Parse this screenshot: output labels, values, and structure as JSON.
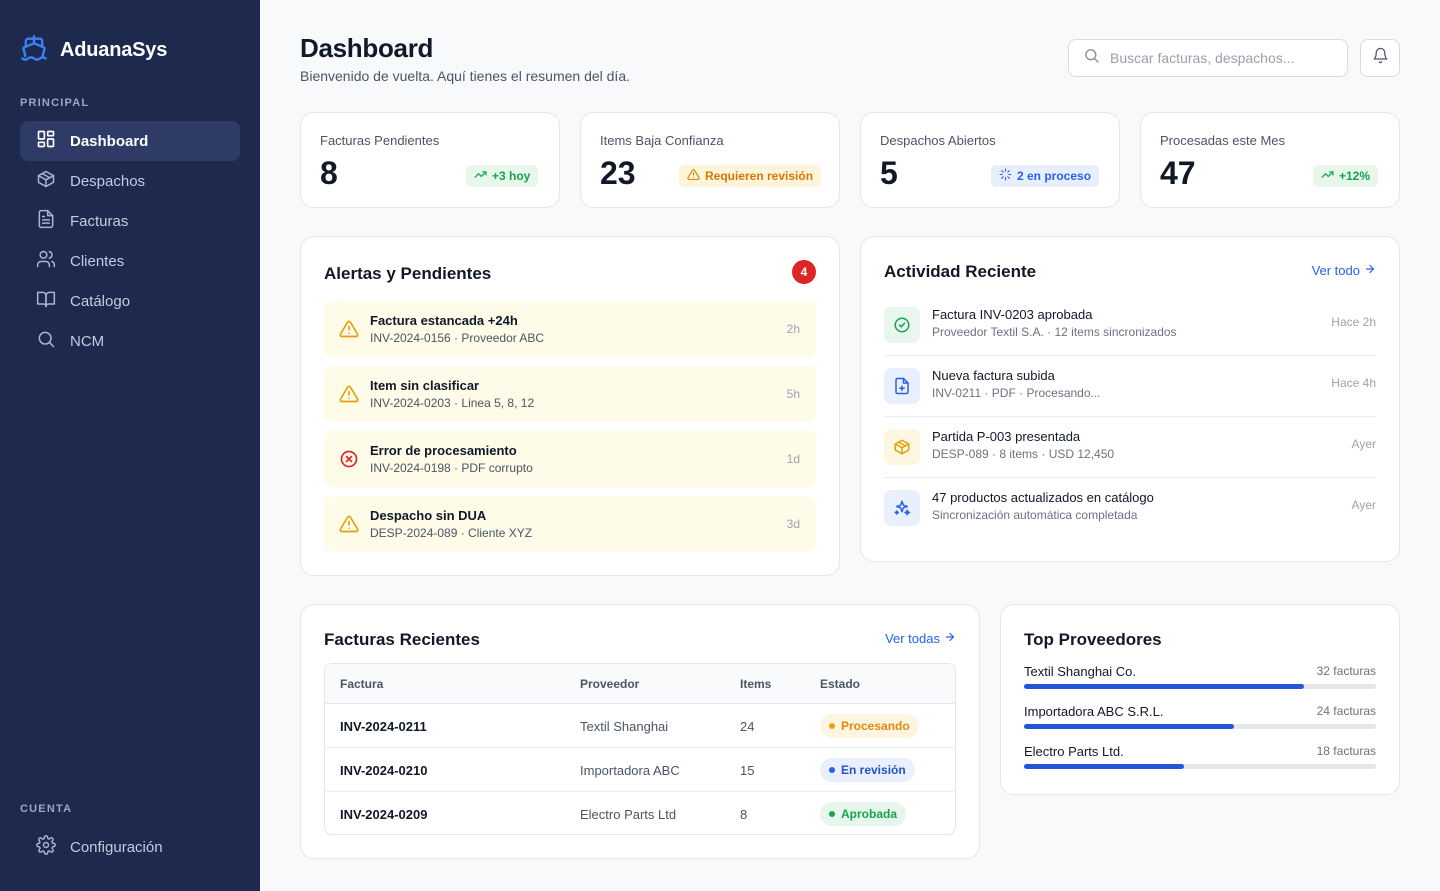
{
  "sidebar": {
    "brand": "AduanaSys",
    "section_principal": "PRINCIPAL",
    "section_cuenta": "CUENTA",
    "items": [
      {
        "label": "Dashboard",
        "icon": "dashboard-icon",
        "active": true
      },
      {
        "label": "Despachos",
        "icon": "package-icon"
      },
      {
        "label": "Facturas",
        "icon": "document-icon"
      },
      {
        "label": "Clientes",
        "icon": "users-icon"
      },
      {
        "label": "Catálogo",
        "icon": "book-icon"
      },
      {
        "label": "NCM",
        "icon": "search-icon"
      }
    ],
    "settings": {
      "label": "Configuración",
      "icon": "gear-icon"
    }
  },
  "header": {
    "title": "Dashboard",
    "subtitle": "Bienvenido de vuelta. Aquí tienes el resumen del día.",
    "search_placeholder": "Buscar facturas, despachos..."
  },
  "stats": [
    {
      "label": "Facturas Pendientes",
      "value": "8",
      "pill": "+3 hoy",
      "tone": "green",
      "icon": "trend-up-icon"
    },
    {
      "label": "Items Baja Confianza",
      "value": "23",
      "pill": "Requieren revisión",
      "tone": "amber",
      "icon": "warning-icon"
    },
    {
      "label": "Despachos Abiertos",
      "value": "5",
      "pill": "2 en proceso",
      "tone": "blue",
      "icon": "loader-icon"
    },
    {
      "label": "Procesadas este Mes",
      "value": "47",
      "pill": "+12%",
      "tone": "green",
      "icon": "trend-up-icon"
    }
  ],
  "alerts": {
    "title": "Alertas y Pendientes",
    "count": "4",
    "items": [
      {
        "title": "Factura estancada +24h",
        "detail": "INV-2024-0156 · Proveedor ABC",
        "time": "2h",
        "icon": "warning-icon"
      },
      {
        "title": "Item sin clasificar",
        "detail": "INV-2024-0203 · Linea 5, 8, 12",
        "time": "5h",
        "icon": "warning-icon"
      },
      {
        "title": "Error de procesamiento",
        "detail": "INV-2024-0198 · PDF corrupto",
        "time": "1d",
        "icon": "error-icon"
      },
      {
        "title": "Despacho sin DUA",
        "detail": "DESP-2024-089 · Cliente XYZ",
        "time": "3d",
        "icon": "warning-icon"
      }
    ]
  },
  "activity": {
    "title": "Actividad Reciente",
    "link": "Ver todo",
    "items": [
      {
        "title": "Factura INV-0203 aprobada",
        "detail": "Proveedor Textil S.A. · 12 items sincronizados",
        "time": "Hace 2h",
        "icon": "check-circle-icon"
      },
      {
        "title": "Nueva factura subida",
        "detail": "INV-0211 · PDF · Procesando...",
        "time": "Hace 4h",
        "icon": "file-plus-icon"
      },
      {
        "title": "Partida P-003 presentada",
        "detail": "DESP-089 · 8 items · USD 12,450",
        "time": "Ayer",
        "icon": "package-icon"
      },
      {
        "title": "47 productos actualizados en catálogo",
        "detail": "Sincronización automática completada",
        "time": "Ayer",
        "icon": "sparkles-icon"
      }
    ]
  },
  "invoices": {
    "title": "Facturas Recientes",
    "link": "Ver todas",
    "columns": [
      "Factura",
      "Proveedor",
      "Items",
      "Estado"
    ],
    "rows": [
      {
        "factura": "INV-2024-0211",
        "proveedor": "Textil Shanghai",
        "items": "24",
        "estado": "Procesando",
        "tone": "amber"
      },
      {
        "factura": "INV-2024-0210",
        "proveedor": "Importadora ABC",
        "items": "15",
        "estado": "En revisión",
        "tone": "blue"
      },
      {
        "factura": "INV-2024-0209",
        "proveedor": "Electro Parts Ltd",
        "items": "8",
        "estado": "Aprobada",
        "tone": "green"
      }
    ]
  },
  "providers": {
    "title": "Top Proveedores",
    "items": [
      {
        "name": "Textil Shanghai Co.",
        "count": "32 facturas",
        "fraction": 0.795
      },
      {
        "name": "Importadora ABC S.R.L.",
        "count": "24 facturas",
        "fraction": 0.597
      },
      {
        "name": "Electro Parts Ltd.",
        "count": "18 facturas",
        "fraction": 0.455
      }
    ]
  },
  "colors": {
    "sidebar": "#1e2a4d",
    "accent": "#2563eb",
    "danger": "#dc2626",
    "warning": "#d97706",
    "success": "#16a34a"
  }
}
